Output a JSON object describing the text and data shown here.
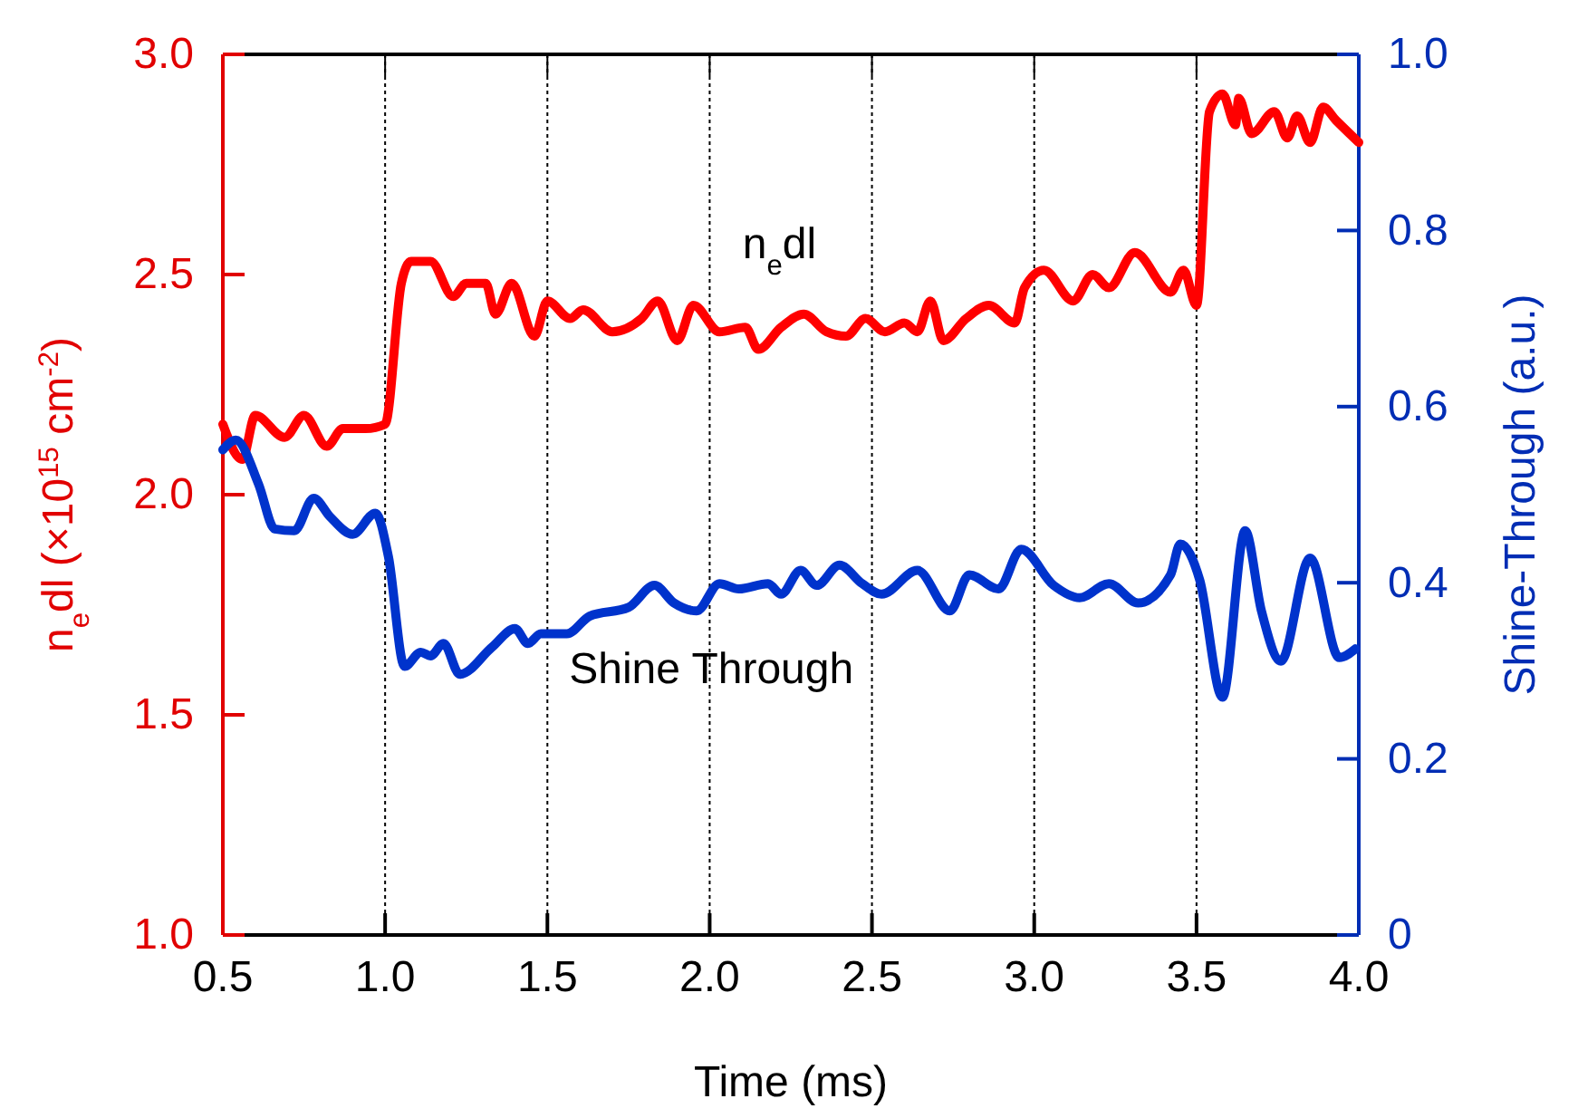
{
  "chart_data": {
    "type": "line",
    "xlabel": "Time (ms)",
    "ylabel": "n$_{e}$dl (×10$^{15}$ cm$^{-2}$)",
    "y2label": "Shine-Through (a.u.)",
    "xlim": [
      0.5,
      4.0
    ],
    "xticks": [
      {
        "value": 0.5,
        "label": "0.5"
      },
      {
        "value": 1,
        "label": "1.0"
      },
      {
        "value": 1.5,
        "label": "1.5"
      },
      {
        "value": 2,
        "label": "2.0"
      },
      {
        "value": 2.5,
        "label": "2.5"
      },
      {
        "value": 3,
        "label": "3.0"
      },
      {
        "value": 3.5,
        "label": "3.5"
      },
      {
        "value": 4,
        "label": "4.0"
      }
    ],
    "ylim": [
      1.0,
      3.0
    ],
    "yticks": [
      {
        "value": 1,
        "label": "1.0"
      },
      {
        "value": 1.5,
        "label": "1.5"
      },
      {
        "value": 2,
        "label": "2.0"
      },
      {
        "value": 2.5,
        "label": "2.5"
      },
      {
        "value": 3,
        "label": "3.0"
      }
    ],
    "y2lim": [
      0,
      1.0
    ],
    "y2ticks": [
      0,
      0.2,
      0.4,
      0.6,
      0.8,
      {
        "value": 1,
        "label": "1.0"
      }
    ],
    "grid": "x",
    "line_style": "solid",
    "marker": "none",
    "series": [
      {
        "name": "n$_{e}$dl",
        "color": "#ff0000",
        "x": [
          0.5,
          0.56,
          0.6,
          0.69,
          0.75,
          0.82,
          0.87,
          0.94,
          1.0,
          1.05,
          1.08,
          1.14,
          1.21,
          1.25,
          1.31,
          1.34,
          1.39,
          1.46,
          1.5,
          1.57,
          1.61,
          1.7,
          1.79,
          1.84,
          1.9,
          1.95,
          2.03,
          2.11,
          2.15,
          2.22,
          2.29,
          2.36,
          2.42,
          2.48,
          2.54,
          2.6,
          2.64,
          2.68,
          2.72,
          2.79,
          2.86,
          2.94,
          2.97,
          3.03,
          3.12,
          3.18,
          3.23,
          3.31,
          3.42,
          3.46,
          3.5,
          3.54,
          3.58,
          3.62,
          3.63,
          3.67,
          3.74,
          3.78,
          3.81,
          3.85,
          3.89,
          3.93,
          4.0
        ],
        "values": [
          2.16,
          2.08,
          2.18,
          2.13,
          2.18,
          2.11,
          2.15,
          2.15,
          2.16,
          2.48,
          2.53,
          2.53,
          2.45,
          2.48,
          2.48,
          2.41,
          2.48,
          2.36,
          2.44,
          2.4,
          2.42,
          2.37,
          2.4,
          2.44,
          2.35,
          2.43,
          2.37,
          2.38,
          2.33,
          2.38,
          2.41,
          2.37,
          2.36,
          2.4,
          2.37,
          2.39,
          2.37,
          2.44,
          2.35,
          2.4,
          2.43,
          2.39,
          2.47,
          2.51,
          2.44,
          2.5,
          2.47,
          2.55,
          2.46,
          2.51,
          2.43,
          2.87,
          2.91,
          2.84,
          2.9,
          2.82,
          2.87,
          2.81,
          2.86,
          2.8,
          2.88,
          2.85,
          2.8
        ]
      },
      {
        "name": "Shine Through",
        "color": "#0033cc",
        "axis": "y2",
        "x": [
          0.5,
          0.54,
          0.61,
          0.66,
          0.72,
          0.78,
          0.83,
          0.9,
          0.97,
          1.01,
          1.06,
          1.11,
          1.14,
          1.18,
          1.23,
          1.33,
          1.4,
          1.44,
          1.48,
          1.56,
          1.63,
          1.75,
          1.83,
          1.89,
          1.96,
          2.03,
          2.09,
          2.18,
          2.22,
          2.28,
          2.33,
          2.4,
          2.47,
          2.53,
          2.64,
          2.74,
          2.8,
          2.89,
          2.96,
          3.06,
          3.14,
          3.23,
          3.32,
          3.42,
          3.45,
          3.51,
          3.58,
          3.65,
          3.7,
          3.76,
          3.85,
          3.94,
          3.99
        ],
        "values": [
          0.551,
          0.562,
          0.512,
          0.461,
          0.459,
          0.496,
          0.475,
          0.455,
          0.479,
          0.43,
          0.305,
          0.321,
          0.317,
          0.331,
          0.296,
          0.327,
          0.348,
          0.331,
          0.342,
          0.342,
          0.362,
          0.372,
          0.397,
          0.377,
          0.368,
          0.399,
          0.393,
          0.399,
          0.387,
          0.414,
          0.397,
          0.42,
          0.399,
          0.387,
          0.414,
          0.368,
          0.409,
          0.393,
          0.438,
          0.397,
          0.383,
          0.399,
          0.377,
          0.409,
          0.444,
          0.403,
          0.27,
          0.459,
          0.368,
          0.311,
          0.428,
          0.315,
          0.325
        ]
      }
    ]
  }
}
